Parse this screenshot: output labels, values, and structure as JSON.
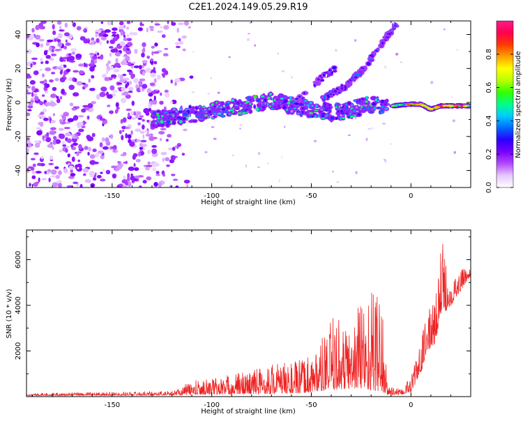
{
  "title": "C2E1.2024.149.05.29.R19",
  "chart_data": [
    {
      "type": "heatmap",
      "xlabel": "Height of straight line (km)",
      "ylabel": "Frequency (Hz)",
      "xlim": [
        -193,
        30
      ],
      "ylim": [
        -50,
        48
      ],
      "xticks": [
        -150,
        -100,
        -50,
        0
      ],
      "yticks": [
        -40,
        -20,
        0,
        20,
        40
      ],
      "colorbar": {
        "label": "Normalized spectral amplitude",
        "range": [
          0,
          1
        ],
        "ticks": [
          0.0,
          0.2,
          0.4,
          0.6,
          0.8
        ],
        "colors": [
          "#ffffff",
          "#e6c8ff",
          "#b44bff",
          "#7a00ff",
          "#2a00ff",
          "#0066ff",
          "#00ccff",
          "#00ff88",
          "#33ff00",
          "#b8ff00",
          "#ffff00",
          "#ffa000",
          "#ff3a00",
          "#ff0050",
          "#ff1a8c"
        ]
      },
      "features": [
        {
          "name": "broadband noise",
          "x": [
            -193,
            -115
          ],
          "frequency_range": [
            -50,
            48
          ]
        },
        {
          "name": "main echo",
          "points": [
            [
              -130,
              -10
            ],
            [
              -110,
              -7
            ],
            [
              -90,
              -3
            ],
            [
              -70,
              1
            ],
            [
              -55,
              -3
            ],
            [
              -40,
              -6
            ],
            [
              -30,
              -4
            ],
            [
              -20,
              -1
            ],
            [
              -12,
              -2
            ]
          ]
        },
        {
          "name": "carrier tone",
          "points": [
            [
              -10,
              -2
            ],
            [
              0,
              -1
            ],
            [
              5,
              -1
            ],
            [
              10,
              -4
            ],
            [
              15,
              -2
            ],
            [
              30,
              -2
            ]
          ]
        },
        {
          "name": "rising branch",
          "points": [
            [
              -45,
              2
            ],
            [
              -32,
              10
            ],
            [
              -22,
              22
            ],
            [
              -15,
              34
            ],
            [
              -7,
              47
            ]
          ]
        },
        {
          "name": "weak branch",
          "points": [
            [
              -58,
              0
            ],
            [
              -45,
              14
            ],
            [
              -38,
              20
            ]
          ]
        }
      ]
    },
    {
      "type": "line",
      "xlabel": "Height of straight line (km)",
      "ylabel": "SNR (10 * v/v)",
      "xlim": [
        -193,
        30
      ],
      "ylim": [
        0,
        7300
      ],
      "xticks": [
        -150,
        -100,
        -50,
        0
      ],
      "yticks": [
        2000,
        4000,
        6000
      ],
      "color": "#ee2222",
      "envelope": [
        {
          "x": -193,
          "base": 40,
          "peak": 150
        },
        {
          "x": -120,
          "base": 60,
          "peak": 250
        },
        {
          "x": -110,
          "base": 80,
          "peak": 700
        },
        {
          "x": -90,
          "base": 100,
          "peak": 1000
        },
        {
          "x": -70,
          "base": 120,
          "peak": 1500
        },
        {
          "x": -55,
          "base": 150,
          "peak": 1600
        },
        {
          "x": -45,
          "base": 250,
          "peak": 2500
        },
        {
          "x": -38,
          "base": 300,
          "peak": 3700
        },
        {
          "x": -30,
          "base": 350,
          "peak": 3100
        },
        {
          "x": -25,
          "base": 350,
          "peak": 4900
        },
        {
          "x": -18,
          "base": 250,
          "peak": 5000
        },
        {
          "x": -15,
          "base": 200,
          "peak": 5500
        },
        {
          "x": -12,
          "base": 80,
          "peak": 600
        },
        {
          "x": -5,
          "base": 80,
          "peak": 300
        },
        {
          "x": 0,
          "base": 200,
          "peak": 1000
        },
        {
          "x": 5,
          "base": 1000,
          "peak": 2500
        },
        {
          "x": 8,
          "base": 2000,
          "peak": 3700
        },
        {
          "x": 12,
          "base": 2300,
          "peak": 4300
        },
        {
          "x": 15,
          "base": 3500,
          "peak": 7200
        },
        {
          "x": 20,
          "base": 4000,
          "peak": 5300
        },
        {
          "x": 30,
          "base": 5300,
          "peak": 5800
        }
      ]
    }
  ]
}
